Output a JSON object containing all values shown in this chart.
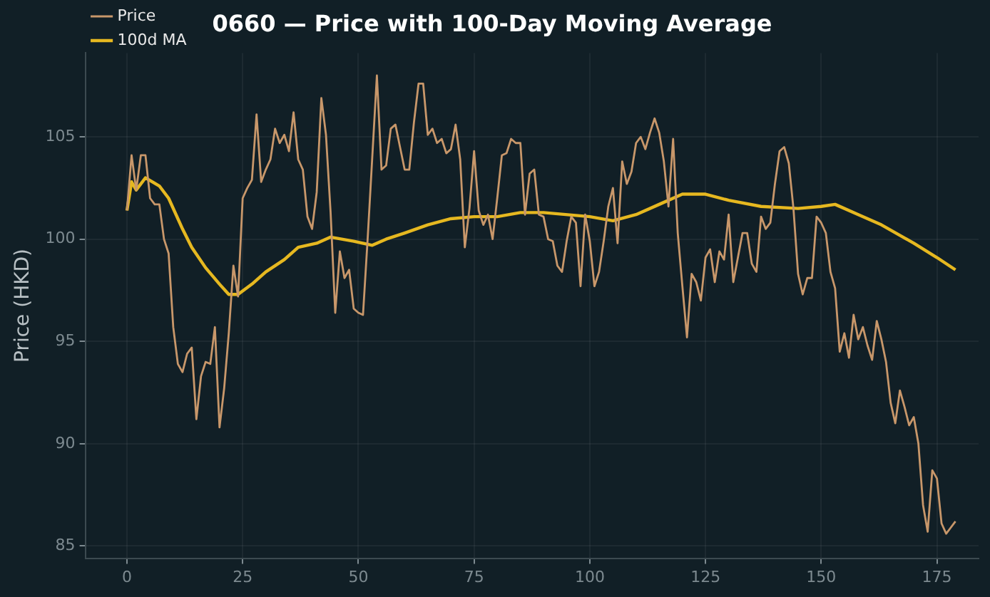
{
  "chart_data": {
    "type": "line",
    "title": "0660 — Price with 100-Day Moving Average",
    "ylabel": "Price (HKD)",
    "xlim": [
      -9,
      184
    ],
    "xticks": [
      0,
      25,
      50,
      75,
      100,
      125,
      150,
      175
    ],
    "ylim": [
      84.4,
      109.1
    ],
    "yticks": [
      85,
      90,
      95,
      100,
      105
    ],
    "grid": true,
    "legend": "top left",
    "line_style": "solid",
    "marker": "none",
    "series": [
      {
        "name": "Price",
        "color": "#c8976a",
        "x": [
          0,
          1,
          2,
          3,
          4,
          5,
          6,
          7,
          8,
          9,
          10,
          11,
          12,
          13,
          14,
          15,
          16,
          17,
          18,
          19,
          20,
          21,
          22,
          23,
          24,
          25,
          26,
          27,
          28,
          29,
          30,
          31,
          32,
          33,
          34,
          35,
          36,
          37,
          38,
          39,
          40,
          41,
          42,
          43,
          44,
          45,
          46,
          47,
          48,
          49,
          50,
          51,
          52,
          53,
          54,
          55,
          56,
          57,
          58,
          59,
          60,
          61,
          62,
          63,
          64,
          65,
          66,
          67,
          68,
          69,
          70,
          71,
          72,
          73,
          74,
          75,
          76,
          77,
          78,
          79,
          80,
          81,
          82,
          83,
          84,
          85,
          86,
          87,
          88,
          89,
          90,
          91,
          92,
          93,
          94,
          95,
          96,
          97,
          98,
          99,
          100,
          101,
          102,
          103,
          104,
          105,
          106,
          107,
          108,
          109,
          110,
          111,
          112,
          113,
          114,
          115,
          116,
          117,
          118,
          119,
          120,
          121,
          122,
          123,
          124,
          125,
          126,
          127,
          128,
          129,
          130,
          131,
          132,
          133,
          134,
          135,
          136,
          137,
          138,
          139,
          140,
          141,
          142,
          143,
          144,
          145,
          146,
          147,
          148,
          149,
          150,
          151,
          152,
          153,
          154,
          155,
          156,
          157,
          158,
          159,
          160,
          161,
          162,
          163,
          164,
          165,
          166,
          167,
          168,
          169,
          170,
          171,
          172,
          173,
          174,
          175,
          176,
          177,
          178,
          179
        ],
        "values": [
          101.4,
          104.1,
          102.4,
          104.1,
          104.1,
          102.0,
          101.7,
          101.7,
          100.0,
          99.3,
          95.7,
          93.9,
          93.5,
          94.4,
          94.7,
          91.2,
          93.3,
          94.0,
          93.9,
          95.7,
          90.8,
          92.7,
          95.4,
          98.7,
          97.2,
          102.0,
          102.5,
          102.9,
          106.1,
          102.8,
          103.4,
          103.9,
          105.4,
          104.7,
          105.1,
          104.3,
          106.2,
          103.9,
          103.4,
          101.1,
          100.5,
          102.3,
          106.9,
          105.1,
          101.3,
          96.4,
          99.4,
          98.1,
          98.5,
          96.6,
          96.4,
          96.3,
          100.0,
          104.0,
          108.0,
          103.4,
          103.6,
          105.4,
          105.6,
          104.5,
          103.4,
          103.4,
          105.7,
          107.6,
          107.6,
          105.1,
          105.4,
          104.7,
          104.9,
          104.2,
          104.4,
          105.6,
          103.9,
          99.6,
          101.5,
          104.3,
          101.4,
          100.7,
          101.2,
          100.0,
          102.0,
          104.1,
          104.2,
          104.9,
          104.7,
          104.7,
          101.2,
          103.2,
          103.4,
          101.2,
          101.1,
          100.0,
          99.9,
          98.7,
          98.4,
          99.9,
          101.1,
          100.8,
          97.7,
          101.2,
          99.9,
          97.7,
          98.4,
          99.9,
          101.6,
          102.5,
          99.8,
          103.8,
          102.7,
          103.3,
          104.7,
          105.0,
          104.4,
          105.2,
          105.9,
          105.2,
          103.8,
          101.6,
          104.9,
          100.3,
          97.7,
          95.2,
          98.3,
          97.9,
          97.0,
          99.1,
          99.5,
          97.9,
          99.4,
          99.0,
          101.2,
          97.9,
          99.1,
          100.3,
          100.3,
          98.8,
          98.4,
          101.1,
          100.5,
          100.8,
          102.7,
          104.3,
          104.5,
          103.7,
          101.5,
          98.3,
          97.3,
          98.1,
          98.1,
          101.1,
          100.8,
          100.3,
          98.4,
          97.6,
          94.5,
          95.4,
          94.2,
          96.3,
          95.1,
          95.7,
          94.8,
          94.1,
          96.0,
          95.1,
          94.0,
          92.0,
          91.0,
          92.6,
          91.8,
          90.9,
          91.3,
          90.0,
          87.0,
          85.7,
          88.7,
          88.3,
          86.1,
          85.6,
          85.9,
          86.2
        ]
      },
      {
        "name": "100d MA",
        "color": "#e6b820",
        "x": [
          0,
          1,
          2,
          4,
          7,
          9,
          12,
          14,
          17,
          20,
          22,
          24,
          27,
          30,
          34,
          37,
          41,
          44,
          49,
          53,
          56,
          60,
          65,
          70,
          75,
          80,
          85,
          90,
          100,
          105,
          110,
          115,
          120,
          125,
          130,
          137,
          145,
          150,
          153,
          158,
          163,
          170,
          175,
          179
        ],
        "values": [
          101.4,
          102.8,
          102.4,
          103.0,
          102.6,
          102.0,
          100.5,
          99.6,
          98.6,
          97.8,
          97.3,
          97.3,
          97.8,
          98.4,
          99.0,
          99.6,
          99.8,
          100.1,
          99.9,
          99.7,
          100.0,
          100.3,
          100.7,
          101.0,
          101.1,
          101.1,
          101.3,
          101.3,
          101.1,
          100.9,
          101.2,
          101.7,
          102.2,
          102.2,
          101.9,
          101.6,
          101.5,
          101.6,
          101.7,
          101.2,
          100.7,
          99.8,
          99.1,
          98.5
        ]
      }
    ]
  }
}
